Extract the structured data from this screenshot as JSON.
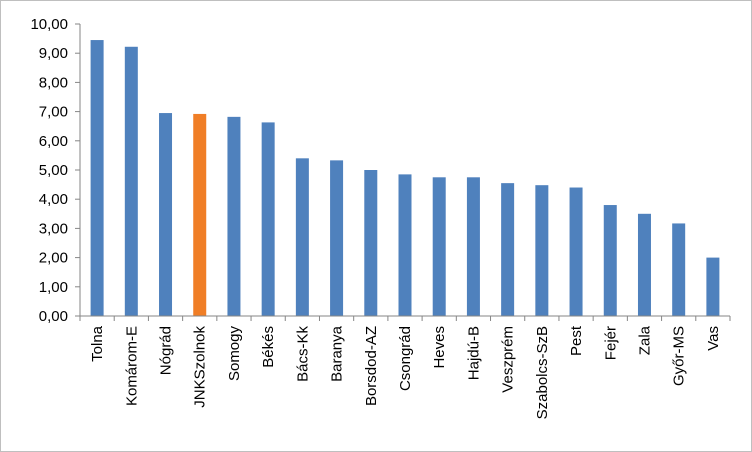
{
  "chart_data": {
    "type": "bar",
    "title": "",
    "xlabel": "",
    "ylabel": "",
    "categories": [
      "Tolna",
      "Komárom-E",
      "Nógrád",
      "JNKSzolnok",
      "Somogy",
      "Békés",
      "Bács-Kk",
      "Baranya",
      "Borsdod-AZ",
      "Csongrád",
      "Heves",
      "Hajdú-B",
      "Veszprém",
      "Szabolcs-SzB",
      "Pest",
      "Fejér",
      "Zala",
      "Győr-MS",
      "Vas"
    ],
    "values": [
      9.45,
      9.22,
      6.95,
      6.92,
      6.82,
      6.63,
      5.4,
      5.33,
      5.0,
      4.85,
      4.75,
      4.75,
      4.55,
      4.48,
      4.4,
      3.8,
      3.5,
      3.17,
      2.0
    ],
    "ylim": [
      0,
      10
    ],
    "yticks": [
      "0,00",
      "1,00",
      "2,00",
      "3,00",
      "4,00",
      "5,00",
      "6,00",
      "7,00",
      "8,00",
      "9,00",
      "10,00"
    ],
    "grid": false,
    "colors": {
      "default": "#4f81bd",
      "highlight": "#f07e26",
      "axis": "#868686"
    },
    "highlight_category": "JNKSzolnok"
  }
}
